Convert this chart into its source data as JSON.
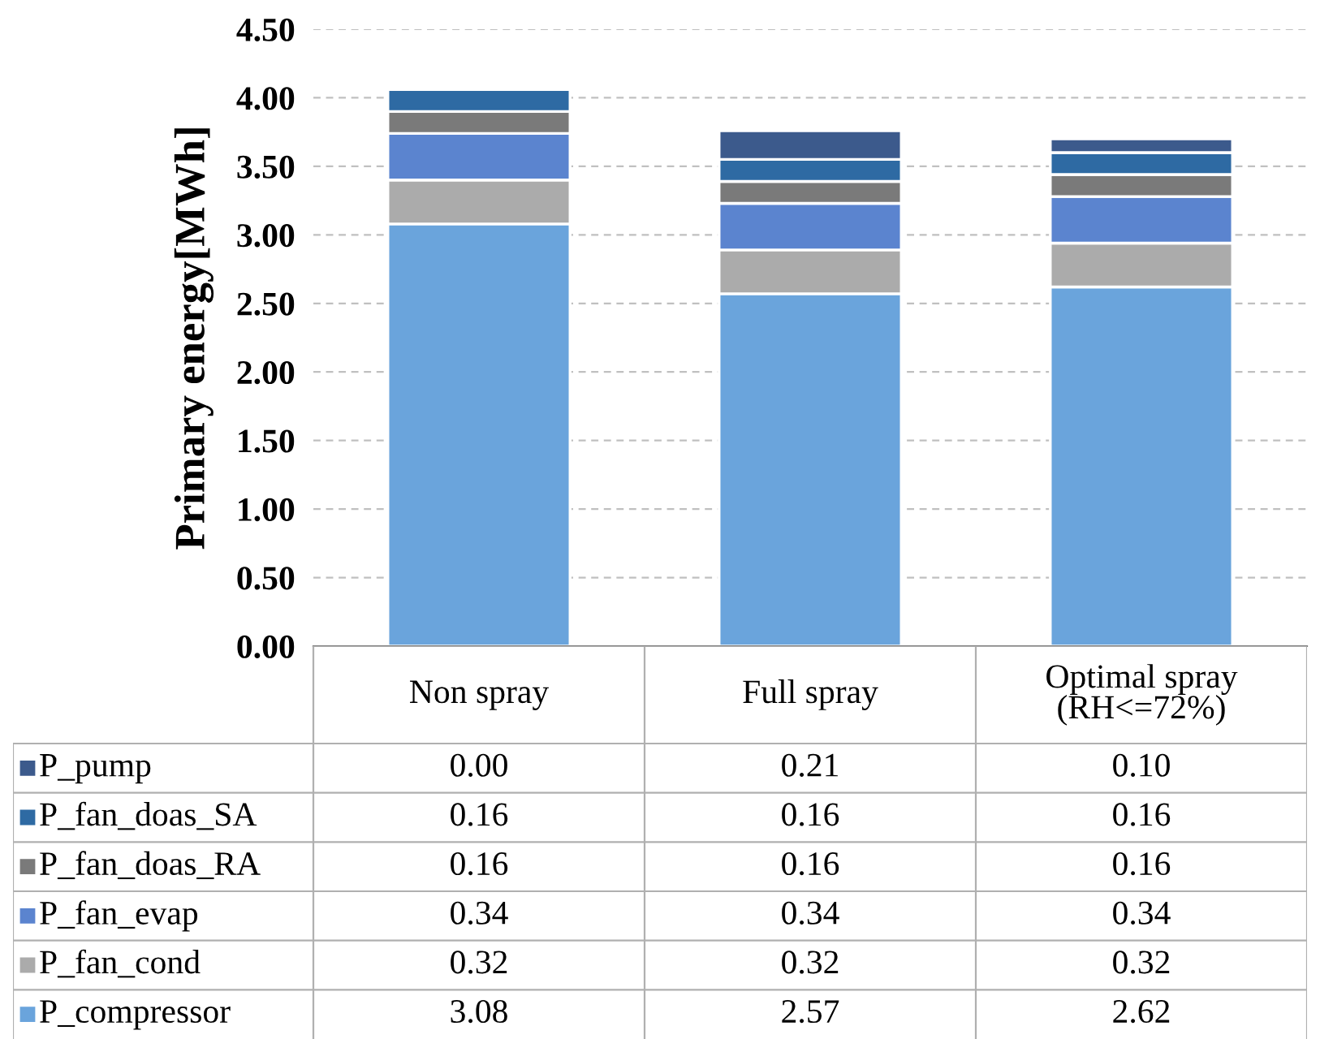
{
  "chart_data": {
    "type": "bar",
    "stacked": true,
    "ylabel": "Primary energy[MWh]",
    "categories": [
      "Non spray",
      "Full spray",
      "Optimal spray\n(RH<=72%)"
    ],
    "series": [
      {
        "name": "P_compressor",
        "color": "#6aa4dc",
        "values": [
          3.08,
          2.57,
          2.62
        ],
        "value_labels": [
          "3.08",
          "2.57",
          "2.62"
        ]
      },
      {
        "name": "P_fan_cond",
        "color": "#ababab",
        "values": [
          0.32,
          0.32,
          0.32
        ],
        "value_labels": [
          "0.32",
          "0.32",
          "0.32"
        ]
      },
      {
        "name": "P_fan_evap",
        "color": "#5b84cf",
        "values": [
          0.34,
          0.34,
          0.34
        ],
        "value_labels": [
          "0.34",
          "0.34",
          "0.34"
        ]
      },
      {
        "name": "P_fan_doas_RA",
        "color": "#7a7a7a",
        "values": [
          0.16,
          0.16,
          0.16
        ],
        "value_labels": [
          "0.16",
          "0.16",
          "0.16"
        ]
      },
      {
        "name": "P_fan_doas_SA",
        "color": "#2e6aa3",
        "values": [
          0.16,
          0.16,
          0.16
        ],
        "value_labels": [
          "0.16",
          "0.16",
          "0.16"
        ]
      },
      {
        "name": "P_pump",
        "color": "#3c5a8c",
        "values": [
          0.0,
          0.21,
          0.1
        ],
        "value_labels": [
          "0.00",
          "0.21",
          "0.10"
        ]
      }
    ],
    "ylim": [
      0,
      4.5
    ],
    "yticks": [
      {
        "value": 0,
        "label": "0.00"
      },
      {
        "value": 0.5,
        "label": "0.50"
      },
      {
        "value": 1,
        "label": "1.00"
      },
      {
        "value": 1.5,
        "label": "1.50"
      },
      {
        "value": 2,
        "label": "2.00"
      },
      {
        "value": 2.5,
        "label": "2.50"
      },
      {
        "value": 3,
        "label": "3.00"
      },
      {
        "value": 3.5,
        "label": "3.50"
      },
      {
        "value": 4,
        "label": "4.00"
      },
      {
        "value": 4.5,
        "label": "4.50"
      }
    ],
    "grid": "y",
    "tick_labels": "y",
    "legend": "bottom"
  }
}
